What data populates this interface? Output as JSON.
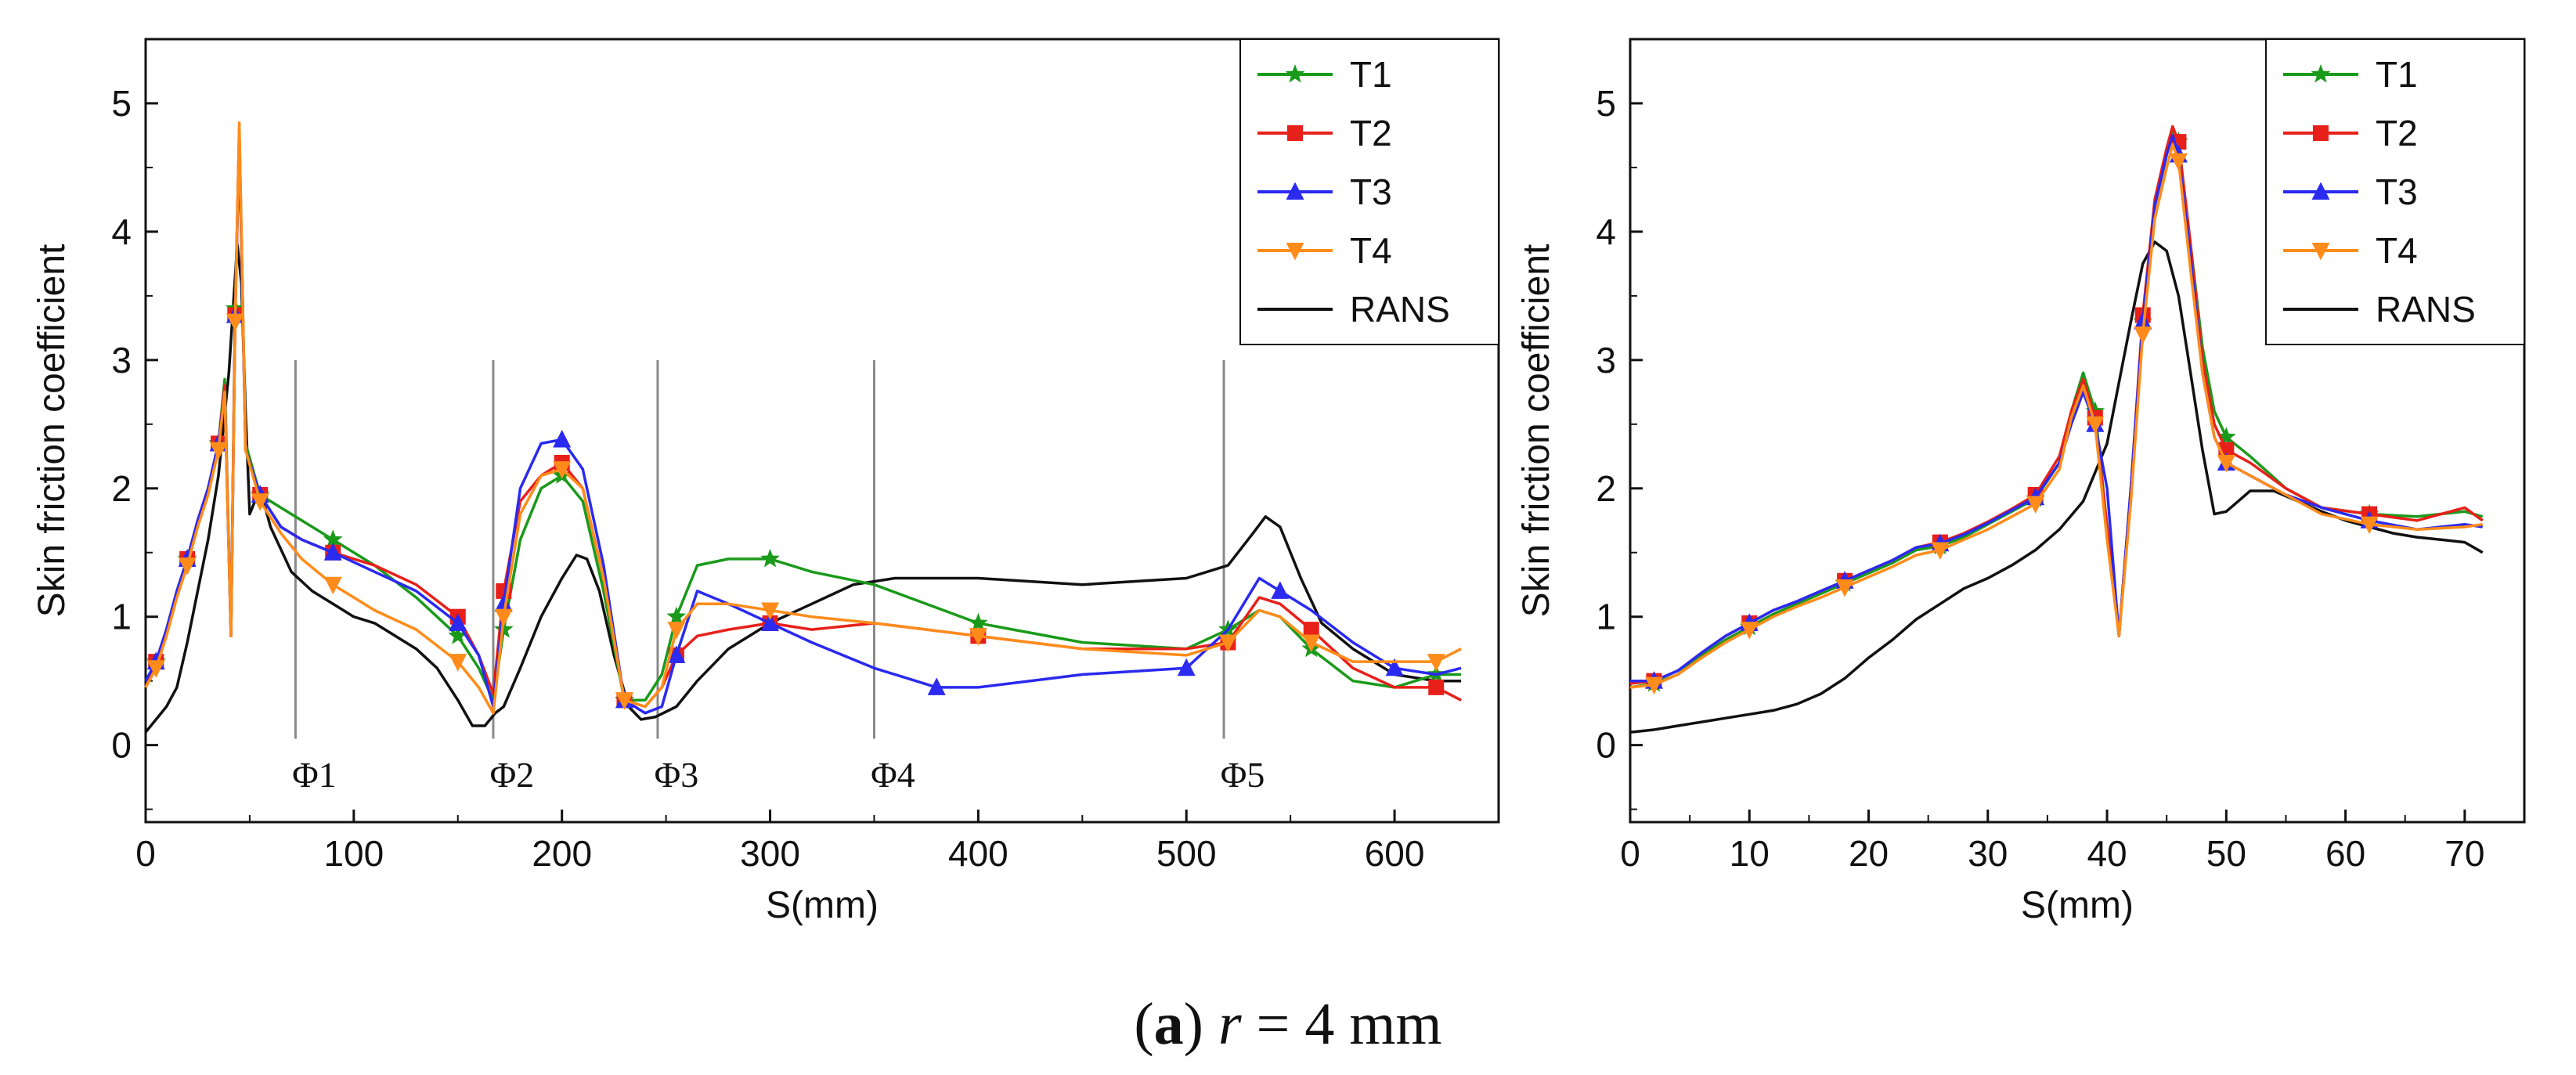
{
  "caption": {
    "letter": "a",
    "symbol": "r",
    "rest": " = 4 mm"
  },
  "chart_data": [
    {
      "type": "line",
      "xlabel": "S(mm)",
      "ylabel": "Skin friction coefficient",
      "xlim": [
        0,
        650
      ],
      "ylim": [
        -0.6,
        5.5
      ],
      "xticks": [
        0,
        100,
        200,
        300,
        400,
        500,
        600
      ],
      "yticks": [
        0,
        1,
        2,
        3,
        4,
        5
      ],
      "legend": {
        "position": "top-right",
        "entries": [
          "T1",
          "T2",
          "T3",
          "T4",
          "RANS"
        ]
      },
      "annotations": [
        {
          "label": "Φ1",
          "x": 72,
          "y_top": 3.0
        },
        {
          "label": "Φ2",
          "x": 167,
          "y_top": 3.0
        },
        {
          "label": "Φ3",
          "x": 246,
          "y_top": 3.0
        },
        {
          "label": "Φ4",
          "x": 350,
          "y_top": 3.0
        },
        {
          "label": "Φ5",
          "x": 518,
          "y_top": 3.0
        }
      ],
      "series": [
        {
          "name": "T1",
          "color": "#1a9a1a",
          "marker": "star",
          "x": [
            0,
            5,
            10,
            15,
            20,
            25,
            30,
            35,
            38,
            41,
            43,
            45,
            48,
            55,
            65,
            75,
            90,
            110,
            130,
            150,
            160,
            167,
            172,
            180,
            190,
            200,
            210,
            220,
            230,
            240,
            248,
            255,
            265,
            280,
            300,
            320,
            350,
            400,
            450,
            500,
            520,
            535,
            545,
            560,
            580,
            600,
            620,
            632
          ],
          "y": [
            0.45,
            0.65,
            0.9,
            1.2,
            1.45,
            1.75,
            2.0,
            2.35,
            2.85,
            0.85,
            3.4,
            4.75,
            2.35,
            1.95,
            1.85,
            1.75,
            1.6,
            1.4,
            1.15,
            0.85,
            0.6,
            0.35,
            0.9,
            1.6,
            2.0,
            2.1,
            1.9,
            1.2,
            0.35,
            0.35,
            0.55,
            1.0,
            1.4,
            1.45,
            1.45,
            1.35,
            1.25,
            0.95,
            0.8,
            0.75,
            0.9,
            1.05,
            1.0,
            0.75,
            0.5,
            0.45,
            0.55,
            0.55
          ]
        },
        {
          "name": "T2",
          "color": "#e8201a",
          "marker": "square",
          "x": [
            0,
            5,
            10,
            15,
            20,
            25,
            30,
            35,
            38,
            41,
            43,
            45,
            48,
            55,
            65,
            75,
            90,
            110,
            130,
            150,
            160,
            167,
            172,
            180,
            190,
            200,
            210,
            220,
            230,
            240,
            248,
            255,
            265,
            280,
            300,
            320,
            350,
            400,
            450,
            500,
            520,
            535,
            545,
            560,
            580,
            600,
            620,
            632
          ],
          "y": [
            0.45,
            0.65,
            0.9,
            1.2,
            1.45,
            1.75,
            2.0,
            2.35,
            2.8,
            0.85,
            3.35,
            4.8,
            2.3,
            1.95,
            1.7,
            1.6,
            1.5,
            1.4,
            1.25,
            1.0,
            0.7,
            0.4,
            1.2,
            1.9,
            2.1,
            2.2,
            2.0,
            1.3,
            0.35,
            0.3,
            0.45,
            0.7,
            0.85,
            0.9,
            0.95,
            0.9,
            0.95,
            0.85,
            0.75,
            0.75,
            0.8,
            1.15,
            1.1,
            0.9,
            0.6,
            0.45,
            0.45,
            0.35
          ]
        },
        {
          "name": "T3",
          "color": "#2a2af0",
          "marker": "triangle",
          "x": [
            0,
            5,
            10,
            15,
            20,
            25,
            30,
            35,
            38,
            41,
            43,
            45,
            48,
            55,
            65,
            75,
            90,
            110,
            130,
            150,
            160,
            167,
            172,
            180,
            190,
            200,
            210,
            220,
            230,
            240,
            248,
            255,
            265,
            280,
            300,
            320,
            350,
            380,
            400,
            450,
            500,
            520,
            535,
            545,
            560,
            580,
            600,
            620,
            632
          ],
          "y": [
            0.5,
            0.65,
            0.9,
            1.2,
            1.45,
            1.75,
            2.0,
            2.35,
            2.75,
            0.85,
            3.35,
            4.7,
            2.3,
            1.95,
            1.7,
            1.6,
            1.5,
            1.35,
            1.2,
            0.95,
            0.7,
            0.3,
            1.1,
            2.0,
            2.35,
            2.38,
            2.15,
            1.4,
            0.35,
            0.25,
            0.3,
            0.7,
            1.2,
            1.1,
            0.95,
            0.8,
            0.6,
            0.45,
            0.45,
            0.55,
            0.6,
            0.9,
            1.3,
            1.2,
            1.05,
            0.8,
            0.6,
            0.55,
            0.6
          ]
        },
        {
          "name": "T4",
          "color": "#ff8c1a",
          "marker": "triangle-down",
          "x": [
            0,
            5,
            10,
            15,
            20,
            25,
            30,
            35,
            38,
            41,
            43,
            45,
            48,
            55,
            65,
            75,
            90,
            110,
            130,
            150,
            160,
            167,
            172,
            180,
            190,
            200,
            210,
            220,
            230,
            240,
            248,
            255,
            265,
            280,
            300,
            320,
            350,
            400,
            450,
            500,
            520,
            535,
            545,
            560,
            580,
            600,
            620,
            632
          ],
          "y": [
            0.45,
            0.6,
            0.85,
            1.15,
            1.4,
            1.7,
            1.95,
            2.3,
            2.75,
            0.85,
            3.3,
            4.85,
            2.3,
            1.9,
            1.65,
            1.45,
            1.25,
            1.05,
            0.9,
            0.65,
            0.45,
            0.25,
            1.0,
            1.8,
            2.1,
            2.15,
            2.0,
            1.3,
            0.35,
            0.3,
            0.45,
            0.9,
            1.1,
            1.1,
            1.05,
            1.0,
            0.95,
            0.85,
            0.75,
            0.7,
            0.8,
            1.05,
            1.0,
            0.8,
            0.65,
            0.65,
            0.65,
            0.75
          ]
        },
        {
          "name": "RANS",
          "color": "#111111",
          "marker": "none",
          "x": [
            0,
            5,
            10,
            15,
            20,
            25,
            30,
            35,
            40,
            44,
            46,
            48,
            50,
            55,
            60,
            70,
            80,
            90,
            100,
            110,
            120,
            130,
            140,
            150,
            157,
            163,
            168,
            172,
            180,
            190,
            200,
            207,
            212,
            218,
            225,
            232,
            238,
            245,
            255,
            265,
            280,
            300,
            320,
            340,
            360,
            380,
            400,
            450,
            500,
            520,
            532,
            538,
            545,
            555,
            565,
            580,
            600,
            620,
            632
          ],
          "y": [
            0.1,
            0.2,
            0.3,
            0.45,
            0.8,
            1.2,
            1.6,
            2.1,
            2.9,
            3.9,
            3.6,
            2.6,
            1.8,
            2.0,
            1.7,
            1.35,
            1.2,
            1.1,
            1.0,
            0.95,
            0.85,
            0.75,
            0.6,
            0.35,
            0.15,
            0.15,
            0.25,
            0.3,
            0.6,
            1.0,
            1.3,
            1.48,
            1.45,
            1.2,
            0.7,
            0.3,
            0.2,
            0.22,
            0.3,
            0.5,
            0.75,
            0.95,
            1.1,
            1.25,
            1.3,
            1.3,
            1.3,
            1.25,
            1.3,
            1.4,
            1.65,
            1.78,
            1.7,
            1.3,
            0.95,
            0.75,
            0.55,
            0.5,
            0.5
          ]
        }
      ]
    },
    {
      "type": "line",
      "xlabel": "S(mm)",
      "ylabel": "Skin friction coefficient",
      "xlim": [
        0,
        75
      ],
      "ylim": [
        -0.6,
        5.5
      ],
      "xticks": [
        0,
        10,
        20,
        30,
        40,
        50,
        60,
        70
      ],
      "yticks": [
        0,
        1,
        2,
        3,
        4,
        5
      ],
      "legend": {
        "position": "top-right",
        "entries": [
          "T1",
          "T2",
          "T3",
          "T4",
          "RANS"
        ]
      },
      "series": [
        {
          "name": "T1",
          "color": "#1a9a1a",
          "marker": "star",
          "x": [
            0,
            2,
            4,
            6,
            8,
            10,
            12,
            14,
            16,
            18,
            20,
            22,
            24,
            26,
            28,
            30,
            32,
            34,
            36,
            37,
            38,
            39,
            40,
            41,
            42,
            43,
            44,
            45,
            45.5,
            46,
            47,
            48,
            49,
            50,
            52,
            55,
            58,
            62,
            66,
            70,
            71.5
          ],
          "y": [
            0.45,
            0.48,
            0.55,
            0.7,
            0.82,
            0.92,
            1.02,
            1.1,
            1.18,
            1.26,
            1.34,
            1.42,
            1.52,
            1.55,
            1.62,
            1.72,
            1.82,
            1.92,
            2.2,
            2.6,
            2.9,
            2.6,
            1.7,
            0.85,
            2.0,
            3.3,
            4.2,
            4.6,
            4.8,
            4.7,
            3.9,
            3.1,
            2.6,
            2.4,
            2.25,
            2.0,
            1.85,
            1.8,
            1.78,
            1.82,
            1.78
          ]
        },
        {
          "name": "T2",
          "color": "#e8201a",
          "marker": "square",
          "x": [
            0,
            2,
            4,
            6,
            8,
            10,
            12,
            14,
            16,
            18,
            20,
            22,
            24,
            26,
            28,
            30,
            32,
            34,
            36,
            37,
            38,
            39,
            40,
            41,
            42,
            43,
            44,
            45,
            45.5,
            46,
            47,
            48,
            49,
            50,
            52,
            55,
            58,
            62,
            66,
            70,
            71.5
          ],
          "y": [
            0.48,
            0.5,
            0.58,
            0.72,
            0.85,
            0.95,
            1.05,
            1.12,
            1.2,
            1.28,
            1.36,
            1.44,
            1.54,
            1.58,
            1.65,
            1.74,
            1.84,
            1.95,
            2.25,
            2.6,
            2.85,
            2.55,
            1.7,
            0.85,
            2.0,
            3.35,
            4.25,
            4.65,
            4.82,
            4.7,
            3.9,
            3.0,
            2.5,
            2.3,
            2.2,
            2.0,
            1.85,
            1.8,
            1.75,
            1.85,
            1.75
          ]
        },
        {
          "name": "T3",
          "color": "#2a2af0",
          "marker": "triangle",
          "x": [
            0,
            2,
            4,
            6,
            8,
            10,
            12,
            14,
            16,
            18,
            20,
            22,
            24,
            26,
            28,
            30,
            32,
            34,
            36,
            37,
            38,
            39,
            40,
            41,
            42,
            43,
            44,
            45,
            45.5,
            46,
            47,
            48,
            49,
            50,
            52,
            55,
            58,
            62,
            66,
            70,
            71.5
          ],
          "y": [
            0.5,
            0.5,
            0.58,
            0.72,
            0.85,
            0.95,
            1.05,
            1.12,
            1.2,
            1.28,
            1.36,
            1.44,
            1.54,
            1.57,
            1.64,
            1.73,
            1.83,
            1.93,
            2.2,
            2.5,
            2.75,
            2.5,
            2.0,
            0.85,
            2.0,
            3.3,
            4.2,
            4.6,
            4.75,
            4.6,
            3.8,
            2.9,
            2.4,
            2.2,
            2.1,
            1.95,
            1.85,
            1.75,
            1.68,
            1.72,
            1.7
          ]
        },
        {
          "name": "T4",
          "color": "#ff8c1a",
          "marker": "triangle-down",
          "x": [
            0,
            2,
            4,
            6,
            8,
            10,
            12,
            14,
            16,
            18,
            20,
            22,
            24,
            26,
            28,
            30,
            32,
            34,
            36,
            37,
            38,
            39,
            40,
            41,
            42,
            43,
            44,
            45,
            45.5,
            46,
            47,
            48,
            49,
            50,
            52,
            55,
            58,
            62,
            66,
            70,
            71.5
          ],
          "y": [
            0.45,
            0.47,
            0.55,
            0.68,
            0.8,
            0.9,
            1.0,
            1.08,
            1.15,
            1.23,
            1.31,
            1.39,
            1.48,
            1.52,
            1.6,
            1.68,
            1.78,
            1.88,
            2.15,
            2.55,
            2.8,
            2.5,
            1.6,
            0.85,
            1.9,
            3.2,
            4.1,
            4.5,
            4.68,
            4.55,
            3.7,
            2.9,
            2.4,
            2.2,
            2.1,
            1.95,
            1.8,
            1.72,
            1.68,
            1.7,
            1.72
          ]
        },
        {
          "name": "RANS",
          "color": "#111111",
          "marker": "none",
          "x": [
            0,
            2,
            4,
            6,
            8,
            10,
            12,
            14,
            16,
            18,
            20,
            22,
            24,
            26,
            28,
            30,
            32,
            34,
            36,
            38,
            40,
            42,
            43,
            44,
            45,
            46,
            47,
            48,
            49,
            50,
            51,
            52,
            54,
            56,
            58,
            60,
            62,
            64,
            66,
            68,
            70,
            71.5
          ],
          "y": [
            0.1,
            0.12,
            0.15,
            0.18,
            0.21,
            0.24,
            0.27,
            0.32,
            0.4,
            0.52,
            0.68,
            0.82,
            0.98,
            1.1,
            1.22,
            1.3,
            1.4,
            1.52,
            1.68,
            1.9,
            2.35,
            3.3,
            3.75,
            3.92,
            3.85,
            3.5,
            2.9,
            2.3,
            1.8,
            1.82,
            1.9,
            1.98,
            1.98,
            1.9,
            1.82,
            1.75,
            1.7,
            1.65,
            1.62,
            1.6,
            1.58,
            1.5
          ]
        }
      ]
    }
  ]
}
